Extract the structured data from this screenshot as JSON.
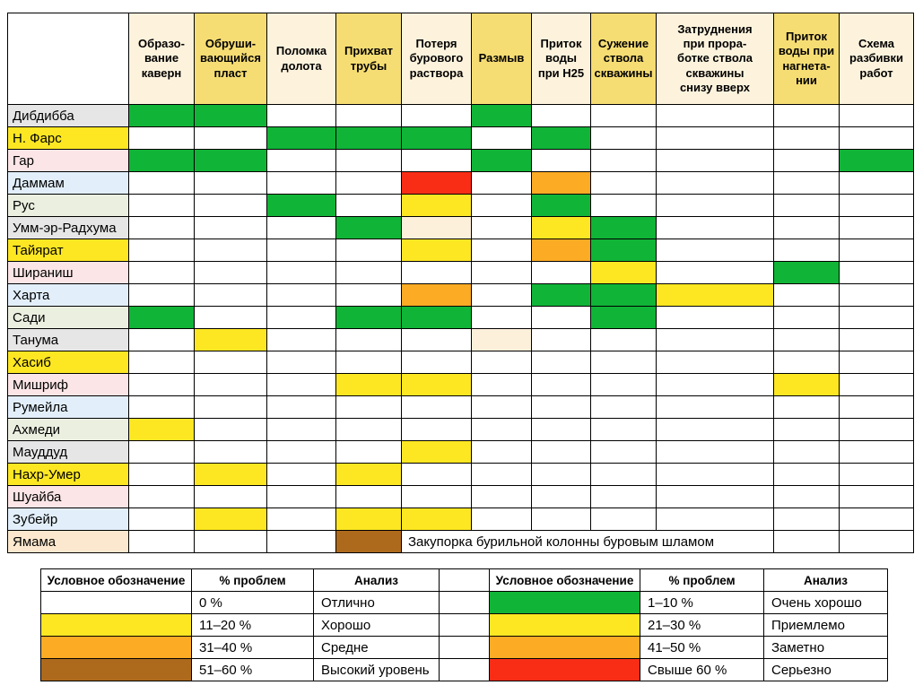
{
  "matrix": {
    "column_headers": [
      {
        "label": "Образо-\nвание\nкаверн",
        "bg": "cream"
      },
      {
        "label": "Обруши-\nвающийся\nпласт",
        "bg": "yellow"
      },
      {
        "label": "Поломка\nдолота",
        "bg": "cream"
      },
      {
        "label": "Прихват\nтрубы",
        "bg": "yellow"
      },
      {
        "label": "Потеря\nбурового\nраствора",
        "bg": "cream"
      },
      {
        "label": "Размыв",
        "bg": "yellow"
      },
      {
        "label": "Приток\nводы\nпри H25",
        "bg": "cream"
      },
      {
        "label": "Сужение\nствола\nскважины",
        "bg": "yellow"
      },
      {
        "label": "Затруднения\nпри прора-\nботке ствола\nскважины\nснизу вверх",
        "bg": "cream"
      },
      {
        "label": "Приток\nводы при\nнагнета-\nнии",
        "bg": "yellow"
      },
      {
        "label": "Схема\nразбивки\nработ",
        "bg": "cream"
      }
    ],
    "rows": [
      {
        "name": "Дибдибба",
        "label_bg": "gray",
        "cells": [
          "G",
          "G",
          "",
          "",
          "",
          "G",
          "",
          "",
          "",
          "",
          ""
        ]
      },
      {
        "name": "Н. Фарс",
        "label_bg": "yellow",
        "cells": [
          "",
          "",
          "G",
          "G",
          "G",
          "",
          "G",
          "",
          "",
          "",
          ""
        ]
      },
      {
        "name": "Гар",
        "label_bg": "pink",
        "cells": [
          "G",
          "G",
          "",
          "",
          "",
          "G",
          "",
          "",
          "",
          "",
          "G"
        ]
      },
      {
        "name": "Даммам",
        "label_bg": "blue",
        "cells": [
          "",
          "",
          "",
          "",
          "R",
          "",
          "O",
          "",
          "",
          "",
          ""
        ]
      },
      {
        "name": "Рус",
        "label_bg": "olive",
        "cells": [
          "",
          "",
          "G",
          "",
          "Y",
          "",
          "G",
          "",
          "",
          "",
          ""
        ]
      },
      {
        "name": "Умм-эр-Радхума",
        "label_bg": "gray",
        "cells": [
          "",
          "",
          "",
          "G",
          "C",
          "",
          "Y",
          "G",
          "",
          "",
          ""
        ]
      },
      {
        "name": "Тайярат",
        "label_bg": "yellow",
        "cells": [
          "",
          "",
          "",
          "",
          "Y",
          "",
          "O",
          "G",
          "",
          "",
          ""
        ]
      },
      {
        "name": "Шираниш",
        "label_bg": "pink",
        "cells": [
          "",
          "",
          "",
          "",
          "",
          "",
          "",
          "Y",
          "",
          "G",
          ""
        ]
      },
      {
        "name": "Харта",
        "label_bg": "blue",
        "cells": [
          "",
          "",
          "",
          "",
          "O",
          "",
          "G",
          "G",
          "Y",
          "",
          ""
        ]
      },
      {
        "name": "Сади",
        "label_bg": "olive",
        "cells": [
          "G",
          "",
          "",
          "G",
          "G",
          "",
          "",
          "G",
          "",
          "",
          ""
        ]
      },
      {
        "name": "Танума",
        "label_bg": "gray",
        "cells": [
          "",
          "Y",
          "",
          "",
          "",
          "C",
          "",
          "",
          "",
          "",
          ""
        ]
      },
      {
        "name": "Хасиб",
        "label_bg": "yellow",
        "cells": [
          "",
          "",
          "",
          "",
          "",
          "",
          "",
          "",
          "",
          "",
          ""
        ]
      },
      {
        "name": "Мишриф",
        "label_bg": "pink",
        "cells": [
          "",
          "",
          "",
          "Y",
          "Y",
          "",
          "",
          "",
          "",
          "Y",
          ""
        ]
      },
      {
        "name": "Румейла",
        "label_bg": "blue",
        "cells": [
          "",
          "",
          "",
          "",
          "",
          "",
          "",
          "",
          "",
          "",
          ""
        ]
      },
      {
        "name": "Ахмеди",
        "label_bg": "olive",
        "cells": [
          "Y",
          "",
          "",
          "",
          "",
          "",
          "",
          "",
          "",
          "",
          ""
        ]
      },
      {
        "name": "Мауддуд",
        "label_bg": "gray",
        "cells": [
          "",
          "",
          "",
          "",
          "Y",
          "",
          "",
          "",
          "",
          "",
          ""
        ]
      },
      {
        "name": "Нахр-Умер",
        "label_bg": "yellow",
        "cells": [
          "",
          "Y",
          "",
          "Y",
          "",
          "",
          "",
          "",
          "",
          "",
          ""
        ]
      },
      {
        "name": "Шуайба",
        "label_bg": "pink",
        "cells": [
          "",
          "",
          "",
          "",
          "",
          "",
          "",
          "",
          "",
          "",
          ""
        ]
      },
      {
        "name": "Зубейр",
        "label_bg": "blue",
        "cells": [
          "",
          "Y",
          "",
          "Y",
          "Y",
          "",
          "",
          "",
          "",
          "",
          ""
        ]
      },
      {
        "name": "Ямама",
        "label_bg": "peach",
        "cells": [
          "",
          "",
          "",
          "B"
        ],
        "merged_note": true,
        "tail": [
          "",
          ""
        ]
      }
    ],
    "yamama_note": {
      "text": "Закупорка бурильной колонны буровым шламом",
      "span": 5
    }
  },
  "legend": {
    "left": {
      "headers": [
        "Условное обозначение",
        "% проблем",
        "Анализ"
      ],
      "rows": [
        {
          "swatch": "white",
          "pct": "0 %",
          "analysis": "Отлично"
        },
        {
          "swatch": "yellow",
          "pct": "11–20 %",
          "analysis": "Хорошо"
        },
        {
          "swatch": "orange",
          "pct": "31–40 %",
          "analysis": "Средне"
        },
        {
          "swatch": "brown",
          "pct": "51–60 %",
          "analysis": "Высокий уровень"
        }
      ]
    },
    "right": {
      "headers": [
        "Условное обозначение",
        "% проблем",
        "Анализ"
      ],
      "rows": [
        {
          "swatch": "green",
          "pct": "1–10 %",
          "analysis": "Очень хорошо"
        },
        {
          "swatch": "yellow",
          "pct": "21–30 %",
          "analysis": "Приемлемо"
        },
        {
          "swatch": "orange",
          "pct": "41–50 %",
          "analysis": "Заметно"
        },
        {
          "swatch": "red",
          "pct": "Свыше 60 %",
          "analysis": "Серьезно"
        }
      ]
    }
  },
  "colors": {
    "green": "#10b437",
    "yellow": "#fde723",
    "orange": "#fcab24",
    "red": "#f92d16",
    "brown": "#ae6a1c",
    "cream_cell": "#fdf0da",
    "white": "#ffffff",
    "header_cream": "#fdf3dd",
    "header_yellow": "#f6dd73",
    "label_gray": "#e7e6e6",
    "label_yellow": "#fde723",
    "label_pink": "#fbe5e6",
    "label_blue": "#e2effa",
    "label_olive": "#ebefe0",
    "label_peach": "#fce8ce"
  }
}
